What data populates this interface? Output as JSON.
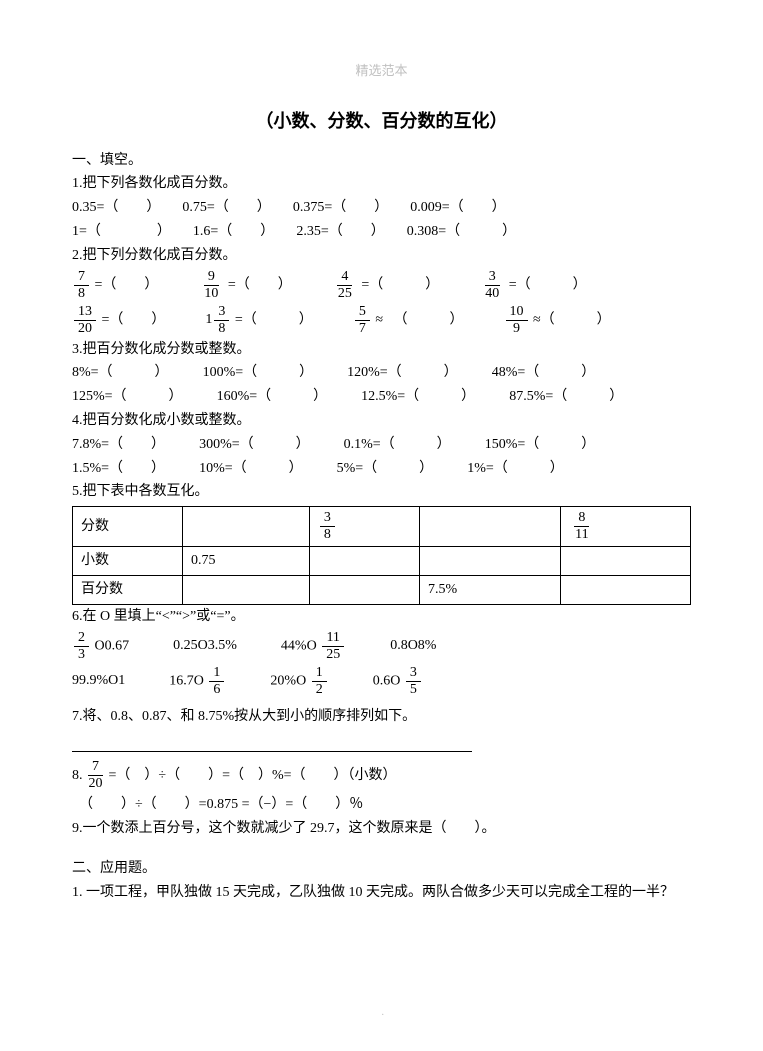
{
  "watermark": "精选范本",
  "title": "（小数、分数、百分数的互化）",
  "section1_header": "一、填空。",
  "q1": {
    "label": "1.把下列各数化成百分数。",
    "r1": [
      "0.35=（　　）",
      "0.75=（　　）",
      "0.375=（　　）",
      "0.009=（　　）"
    ],
    "r2": [
      "1=（　　　　）",
      "1.6=（　　）",
      "2.35=（　　）",
      "0.308=（　　　）"
    ]
  },
  "q2": {
    "label": "2.把下列分数化成百分数。",
    "r1": [
      {
        "n": "7",
        "d": "8",
        "after": " =（　　）"
      },
      {
        "n": "9",
        "d": "10",
        "after": " =（　　）"
      },
      {
        "n": "4",
        "d": "25",
        "after": " =（　　　）"
      },
      {
        "n": "3",
        "d": "40",
        "after": " =（　　　）"
      }
    ],
    "r2": [
      {
        "whole": "",
        "n": "13",
        "d": "20",
        "after": " =（　　）"
      },
      {
        "whole": "1",
        "n": "3",
        "d": "8",
        "after": " =（　　　）"
      },
      {
        "whole": "",
        "n": "5",
        "d": "7",
        "after": " ≈ 　（　　　）"
      },
      {
        "whole": "",
        "n": "10",
        "d": "9",
        "after": " ≈（　　　）"
      }
    ]
  },
  "q3": {
    "label": "3.把百分数化成分数或整数。",
    "r1": [
      "8%=（　　　）",
      "100%=（　　　）",
      "120%=（　　　）",
      "48%=（　　　）"
    ],
    "r2": [
      "125%=（　　　）",
      "160%=（　　　）",
      "12.5%=（　　　）",
      "87.5%=（　　　）"
    ]
  },
  "q4": {
    "label": "4.把百分数化成小数或整数。",
    "r1": [
      "7.8%=（　　）",
      "300%=（　　　）",
      "0.1%=（　　　）",
      "150%=（　　　）"
    ],
    "r2": [
      "1.5%=（　　）",
      "10%=（　　　）",
      "5%=（　　　）",
      "1%=（　　　）"
    ]
  },
  "q5": {
    "label": "5.把下表中各数互化。",
    "row_labels": [
      "分数",
      "小数",
      "百分数"
    ],
    "cells": {
      "frac_c2": {
        "n": "3",
        "d": "8"
      },
      "frac_c4": {
        "n": "8",
        "d": "11"
      },
      "decimal_c1": "0.75",
      "percent_c3": "7.5%"
    }
  },
  "q6": {
    "label": "6.在 O 里填上“<”“>”或“=”。",
    "r1": [
      {
        "pre": "",
        "frac": {
          "n": "2",
          "d": "3"
        },
        "post": " O0.67"
      },
      {
        "text": "0.25O3.5%"
      },
      {
        "pre": "44%O ",
        "frac": {
          "n": "11",
          "d": "25"
        },
        "post": ""
      },
      {
        "text": "0.8O8%"
      }
    ],
    "r2": [
      {
        "text": "99.9%O1"
      },
      {
        "pre": "16.7O ",
        "frac": {
          "n": "1",
          "d": "6"
        },
        "post": ""
      },
      {
        "pre": "20%O ",
        "frac": {
          "n": "1",
          "d": "2"
        },
        "post": ""
      },
      {
        "pre": "0.6O ",
        "frac": {
          "n": "3",
          "d": "5"
        },
        "post": ""
      }
    ]
  },
  "q7": "7.将、0.8、0.87、和 8.75%按从大到小的顺序排列如下。",
  "q8": {
    "line1_pre": "8. ",
    "frac": {
      "n": "7",
      "d": "20"
    },
    "line1_post": " =（　）÷（　　）=（　）%=（　　）（小数）",
    "line2": "　（　　）÷（　　）=0.875 =（−）=（　　）％"
  },
  "q9": "9.一个数添上百分号，这个数就减少了 29.7，这个数原来是（　　）。",
  "section2_header": "二、应用题。",
  "app1": "1. 一项工程，甲队独做 15 天完成，乙队独做 10 天完成。两队合做多少天可以完成全工程的一半？"
}
